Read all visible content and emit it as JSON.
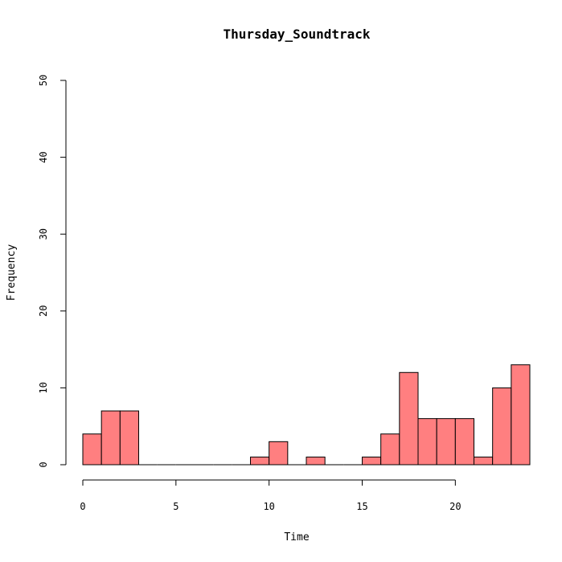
{
  "chart_data": {
    "type": "bar",
    "title": "Thursday_Soundtrack",
    "xlabel": "Time",
    "ylabel": "Frequency",
    "bin_width": 1,
    "xlim": [
      0,
      24
    ],
    "ylim": [
      0,
      50
    ],
    "x_ticks": [
      0,
      5,
      10,
      15,
      20
    ],
    "y_ticks": [
      0,
      10,
      20,
      30,
      40,
      50
    ],
    "bins": [
      {
        "start": 0,
        "end": 1,
        "count": 4
      },
      {
        "start": 1,
        "end": 2,
        "count": 7
      },
      {
        "start": 2,
        "end": 3,
        "count": 7
      },
      {
        "start": 3,
        "end": 4,
        "count": 0
      },
      {
        "start": 4,
        "end": 5,
        "count": 0
      },
      {
        "start": 5,
        "end": 6,
        "count": 0
      },
      {
        "start": 6,
        "end": 7,
        "count": 0
      },
      {
        "start": 7,
        "end": 8,
        "count": 0
      },
      {
        "start": 8,
        "end": 9,
        "count": 0
      },
      {
        "start": 9,
        "end": 10,
        "count": 1
      },
      {
        "start": 10,
        "end": 11,
        "count": 3
      },
      {
        "start": 11,
        "end": 12,
        "count": 0
      },
      {
        "start": 12,
        "end": 13,
        "count": 1
      },
      {
        "start": 13,
        "end": 14,
        "count": 0
      },
      {
        "start": 14,
        "end": 15,
        "count": 0
      },
      {
        "start": 15,
        "end": 16,
        "count": 1
      },
      {
        "start": 16,
        "end": 17,
        "count": 4
      },
      {
        "start": 17,
        "end": 18,
        "count": 12
      },
      {
        "start": 18,
        "end": 19,
        "count": 6
      },
      {
        "start": 19,
        "end": 20,
        "count": 6
      },
      {
        "start": 20,
        "end": 21,
        "count": 6
      },
      {
        "start": 21,
        "end": 22,
        "count": 1
      },
      {
        "start": 22,
        "end": 23,
        "count": 10
      },
      {
        "start": 23,
        "end": 24,
        "count": 13
      }
    ],
    "bar_color": "#ff7f80",
    "grid": false,
    "legend": "none"
  }
}
